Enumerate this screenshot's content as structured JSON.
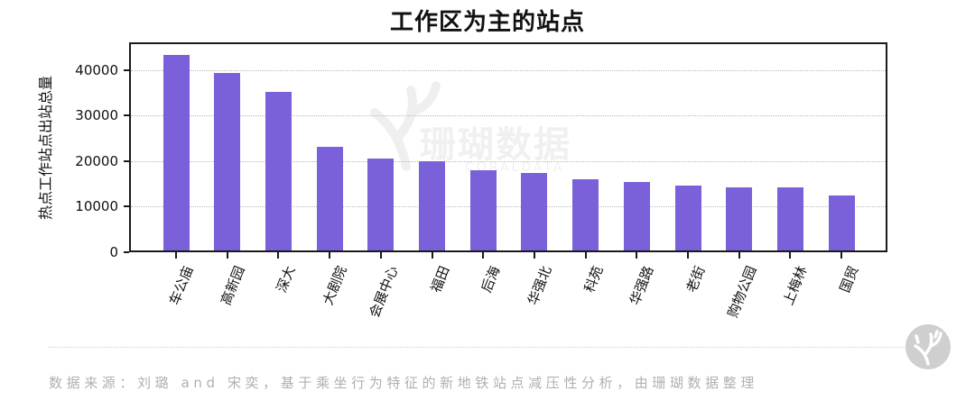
{
  "title": "工作区为主的站点",
  "chart_data": {
    "type": "bar",
    "title": "工作区为主的站点",
    "xlabel": "",
    "ylabel": "热点工作站点出站总量",
    "categories": [
      "车公庙",
      "高新园",
      "深大",
      "大剧院",
      "会展中心",
      "福田",
      "后海",
      "华强北",
      "科苑",
      "华强路",
      "老街",
      "购物公园",
      "上梅林",
      "国贸"
    ],
    "values": [
      42900,
      39000,
      34900,
      22700,
      20200,
      19600,
      17600,
      17100,
      15700,
      15100,
      14300,
      13900,
      13900,
      12100
    ],
    "ylim": [
      0,
      45700
    ],
    "yticks": [
      0,
      10000,
      20000,
      30000,
      40000
    ],
    "ytick_labels": [
      "0",
      "10000",
      "20000",
      "30000",
      "40000"
    ],
    "grid": "horizontal dotted",
    "legend": null,
    "bar_color": "#7b61d9"
  },
  "watermark": {
    "text": "珊瑚数据",
    "sub": "CORALDATA"
  },
  "footer": {
    "source": "数据来源：刘璐 and 宋奕，基于乘坐行为特征的新地铁站点减压性分析，由珊瑚数据整理"
  },
  "logo": {
    "icon": "coral-logo-icon"
  }
}
